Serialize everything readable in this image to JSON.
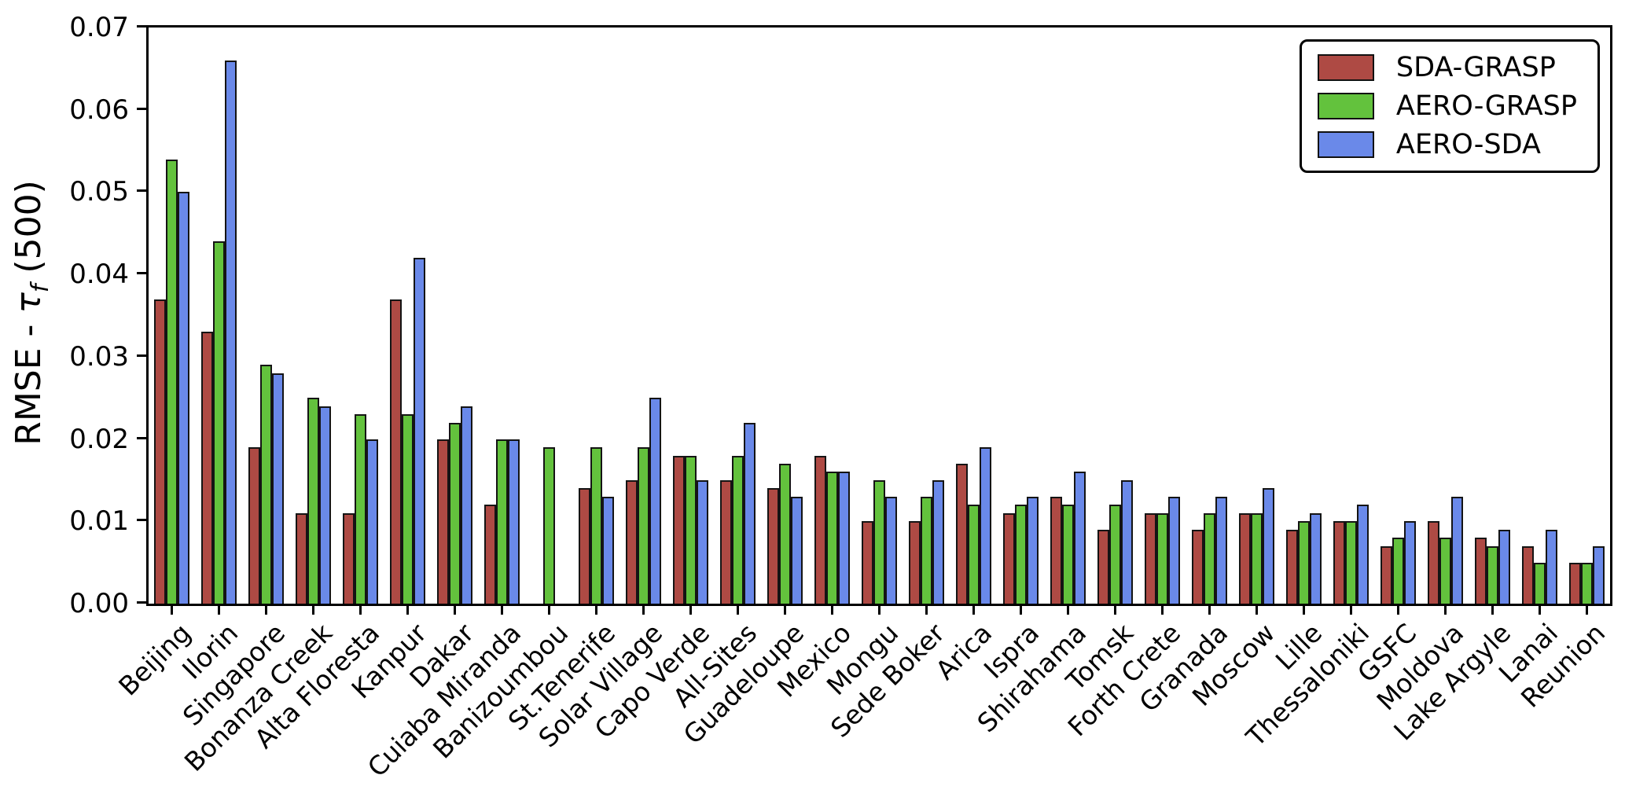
{
  "chart_data": {
    "type": "bar",
    "title": "",
    "ylabel": {
      "prefix": "RMSE - ",
      "symbol": "τ",
      "subscript": "f",
      "suffix": " (500)"
    },
    "ylim": [
      0,
      0.07
    ],
    "y_ticks": [
      "0.00",
      "0.01",
      "0.02",
      "0.03",
      "0.04",
      "0.05",
      "0.06",
      "0.07"
    ],
    "grid": false,
    "legend_position": "upper right",
    "categories": [
      "Beijing",
      "Ilorin",
      "Singapore",
      "Bonanza Creek",
      "Alta Floresta",
      "Kanpur",
      "Dakar",
      "Cuiaba Miranda",
      "Banizoumbou",
      "St.Tenerife",
      "Solar Village",
      "Capo Verde",
      "All-Sites",
      "Guadeloupe",
      "Mexico",
      "Mongu",
      "Sede Boker",
      "Arica",
      "Ispra",
      "Shirahama",
      "Tomsk",
      "Forth Crete",
      "Granada",
      "Moscow",
      "Lille",
      "Thessaloniki",
      "GSFC",
      "Moldova",
      "Lake Argyle",
      "Lanai",
      "Reunion"
    ],
    "series": [
      {
        "name": "SDA-GRASP",
        "color": "#ae4a44",
        "values": [
          0.037,
          0.033,
          0.019,
          0.011,
          0.011,
          0.037,
          0.02,
          0.012,
          0,
          0.014,
          0.015,
          0.018,
          0.015,
          0.014,
          0.018,
          0.01,
          0.01,
          0.017,
          0.011,
          0.013,
          0.009,
          0.011,
          0.009,
          0.011,
          0.009,
          0.01,
          0.007,
          0.01,
          0.008,
          0.007,
          0.005
        ]
      },
      {
        "name": "AERO-GRASP",
        "color": "#63c23d",
        "values": [
          0.054,
          0.044,
          0.029,
          0.025,
          0.023,
          0.023,
          0.022,
          0.02,
          0.019,
          0.019,
          0.019,
          0.018,
          0.018,
          0.017,
          0.016,
          0.015,
          0.013,
          0.012,
          0.012,
          0.012,
          0.012,
          0.011,
          0.011,
          0.011,
          0.01,
          0.01,
          0.008,
          0.008,
          0.007,
          0.005,
          0.005
        ]
      },
      {
        "name": "AERO-SDA",
        "color": "#6a89e9",
        "values": [
          0.05,
          0.066,
          0.028,
          0.024,
          0.02,
          0.042,
          0.024,
          0.02,
          0,
          0.013,
          0.025,
          0.015,
          0.022,
          0.013,
          0.016,
          0.013,
          0.015,
          0.019,
          0.013,
          0.016,
          0.015,
          0.013,
          0.013,
          0.014,
          0.011,
          0.012,
          0.01,
          0.013,
          0.009,
          0.009,
          0.007
        ]
      }
    ]
  }
}
